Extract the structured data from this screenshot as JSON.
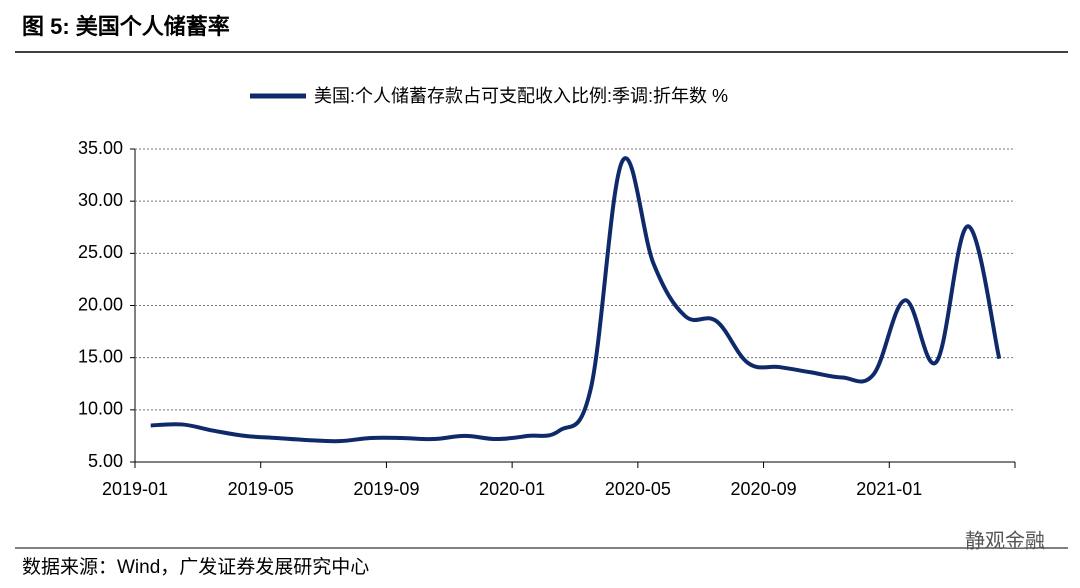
{
  "title": "图 5:  美国个人储蓄率",
  "source": "数据来源：Wind，广发证券发展研究中心",
  "watermark": "静观金融",
  "chart_data": {
    "type": "line",
    "categories": [
      "2019-01",
      null,
      null,
      null,
      "2019-05",
      null,
      null,
      null,
      "2019-09",
      null,
      null,
      null,
      "2020-01",
      null,
      null,
      null,
      "2020-05",
      null,
      null,
      null,
      "2020-09",
      null,
      null,
      null,
      "2021-01",
      null,
      null,
      null
    ],
    "series": [
      {
        "name": "美国:个人储蓄存款占可支配收入比例:季调:折年数 %",
        "color": "#0e2a6b",
        "values": [
          8.5,
          8.6,
          8.0,
          7.5,
          7.3,
          7.1,
          7.0,
          7.3,
          7.3,
          7.2,
          7.5,
          7.2,
          7.5,
          8.0,
          12.0,
          33.8,
          24.0,
          19.0,
          18.5,
          14.5,
          14.1,
          13.6,
          13.1,
          13.4,
          20.5,
          14.6,
          27.6,
          14.9
        ]
      }
    ],
    "ylim": [
      5,
      35
    ],
    "yticks": [
      {
        "value": 5,
        "label": "5.00"
      },
      {
        "value": 10,
        "label": "10.00"
      },
      {
        "value": 15,
        "label": "15.00"
      },
      {
        "value": 20,
        "label": "20.00"
      },
      {
        "value": 25,
        "label": "25.00"
      },
      {
        "value": 30,
        "label": "30.00"
      },
      {
        "value": 35,
        "label": "35.00"
      }
    ],
    "grid": true
  }
}
